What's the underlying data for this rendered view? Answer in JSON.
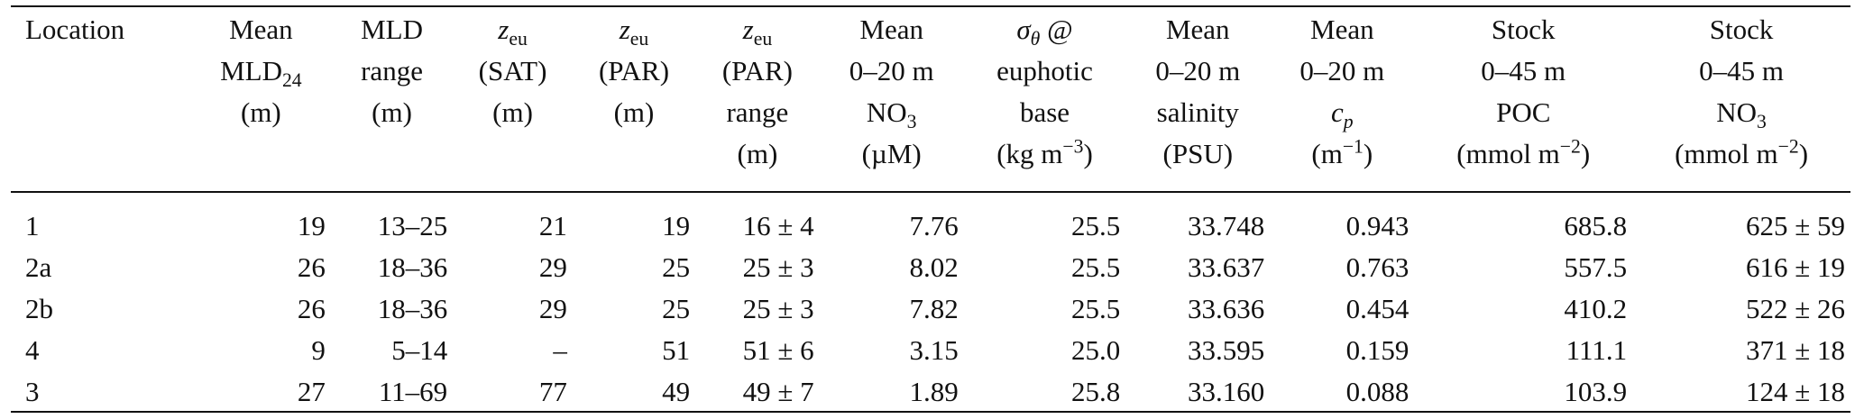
{
  "table": {
    "headers": [
      {
        "name": "location",
        "lines": [
          "Location"
        ]
      },
      {
        "name": "mean-mld24",
        "lines": [
          "Mean",
          "MLD24",
          "(m)"
        ]
      },
      {
        "name": "mld-range",
        "lines": [
          "MLD",
          "range",
          "(m)"
        ]
      },
      {
        "name": "zeu-sat",
        "lines": [
          "zeu",
          "(SAT)",
          "(m)"
        ]
      },
      {
        "name": "zeu-par",
        "lines": [
          "zeu",
          "(PAR)",
          "(m)"
        ]
      },
      {
        "name": "zeu-par-range",
        "lines": [
          "zeu",
          "(PAR)",
          "range",
          "(m)"
        ]
      },
      {
        "name": "mean-no3",
        "lines": [
          "Mean",
          "0–20 m",
          "NO3",
          "(µM)"
        ]
      },
      {
        "name": "sigma-theta",
        "lines": [
          "σθ @",
          "euphotic",
          "base",
          "(kg m−3)"
        ]
      },
      {
        "name": "mean-salinity",
        "lines": [
          "Mean",
          "0–20 m",
          "salinity",
          "(PSU)"
        ]
      },
      {
        "name": "mean-cp",
        "lines": [
          "Mean",
          "0–20 m",
          "cp",
          "(m−1)"
        ]
      },
      {
        "name": "stock-poc",
        "lines": [
          "Stock",
          "0–45 m",
          "POC",
          "(mmol m−2)"
        ]
      },
      {
        "name": "stock-no3",
        "lines": [
          "Stock",
          "0–45 m",
          "NO3",
          "(mmol m−2)"
        ]
      }
    ],
    "rows": [
      [
        "1",
        "19",
        "13–25",
        "21",
        "19",
        "16 ± 4",
        "7.76",
        "25.5",
        "33.748",
        "0.943",
        "685.8",
        "625 ± 59"
      ],
      [
        "2a",
        "26",
        "18–36",
        "29",
        "25",
        "25 ± 3",
        "8.02",
        "25.5",
        "33.637",
        "0.763",
        "557.5",
        "616 ± 19"
      ],
      [
        "2b",
        "26",
        "18–36",
        "29",
        "25",
        "25 ± 3",
        "7.82",
        "25.5",
        "33.636",
        "0.454",
        "410.2",
        "522 ± 26"
      ],
      [
        "4",
        "9",
        "5–14",
        "–",
        "51",
        "51 ± 6",
        "3.15",
        "25.0",
        "33.595",
        "0.159",
        "111.1",
        "371 ± 18"
      ],
      [
        "3",
        "27",
        "11–69",
        "77",
        "49",
        "49 ± 7",
        "1.89",
        "25.8",
        "33.160",
        "0.088",
        "103.9",
        "124 ± 18"
      ]
    ]
  }
}
